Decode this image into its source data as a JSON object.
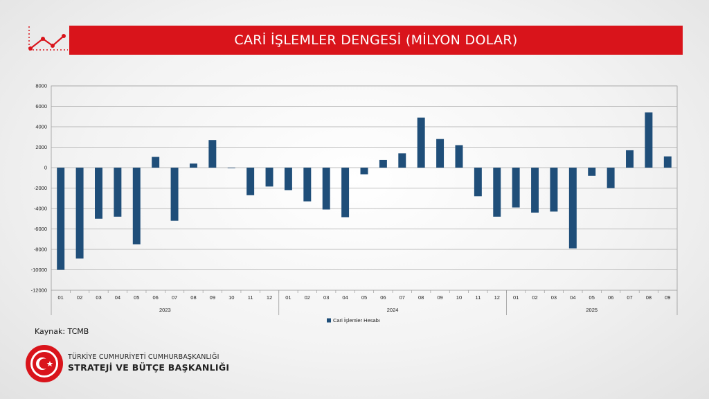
{
  "header": {
    "title": "CARİ İŞLEMLER DENGESİ (MİLYON DOLAR)",
    "accent_color": "#d9141b",
    "icon": "line-chart-icon"
  },
  "footer": {
    "source": "Kaynak: TCMB",
    "org_line1": "TÜRKİYE CUMHURİYETİ CUMHURBAŞKANLIĞI",
    "org_line2": "STRATEJİ VE BÜTÇE BAŞKANLIĞI",
    "seal_icon": "crescent-star-seal-icon"
  },
  "chart_data": {
    "type": "bar",
    "color": "#1f4e79",
    "ylim": [
      -12000,
      8000
    ],
    "yticks": [
      8000,
      6000,
      4000,
      2000,
      0,
      -2000,
      -4000,
      -6000,
      -8000,
      -10000,
      -12000
    ],
    "grid": true,
    "legend_position": "bottom-center",
    "series": [
      {
        "name": "Cari İşlemler Hesabı",
        "values": [
          -10000,
          -8900,
          -5000,
          -4800,
          -7500,
          1050,
          -5200,
          400,
          2700,
          -50,
          -2700,
          -1850,
          -2200,
          -3300,
          -4100,
          -4850,
          -650,
          750,
          1400,
          4900,
          2800,
          2200,
          -2800,
          -4800,
          -3900,
          -4400,
          -4300,
          -7900,
          -800,
          -2000,
          1700,
          5400,
          1100
        ]
      }
    ],
    "groups": [
      {
        "label": "2023",
        "categories": [
          "01",
          "02",
          "03",
          "04",
          "05",
          "06",
          "07",
          "08",
          "09",
          "10",
          "11",
          "12"
        ]
      },
      {
        "label": "2024",
        "categories": [
          "01",
          "02",
          "03",
          "04",
          "05",
          "06",
          "07",
          "08",
          "09",
          "10",
          "11",
          "12"
        ]
      },
      {
        "label": "2025",
        "categories": [
          "01",
          "02",
          "03",
          "04",
          "05",
          "06",
          "07",
          "08",
          "09"
        ]
      }
    ]
  }
}
